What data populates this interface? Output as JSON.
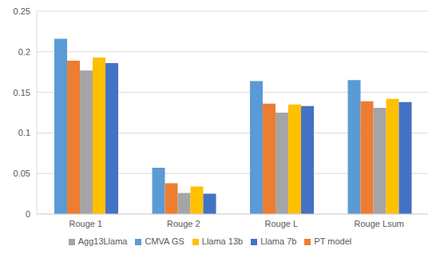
{
  "chart_data": {
    "type": "bar",
    "categories": [
      "Rouge 1",
      "Rouge 2",
      "Rouge L",
      "Rouge Lsum"
    ],
    "series": [
      {
        "name": "CMVA GS",
        "color": "#5b9bd5",
        "values": [
          0.216,
          0.057,
          0.164,
          0.165
        ]
      },
      {
        "name": "PT model",
        "color": "#ed7d31",
        "values": [
          0.189,
          0.038,
          0.136,
          0.139
        ]
      },
      {
        "name": "Agg13Llama",
        "color": "#a5a5a5",
        "values": [
          0.177,
          0.026,
          0.125,
          0.131
        ]
      },
      {
        "name": "Llama 13b",
        "color": "#ffc000",
        "values": [
          0.193,
          0.034,
          0.135,
          0.142
        ]
      },
      {
        "name": "Llama 7b",
        "color": "#4472c4",
        "values": [
          0.186,
          0.025,
          0.133,
          0.138
        ]
      }
    ],
    "ylim": [
      0,
      0.25
    ],
    "yticks": [
      0,
      0.05,
      0.1,
      0.15,
      0.2,
      0.25
    ],
    "grid": true,
    "legend": "bottom"
  }
}
